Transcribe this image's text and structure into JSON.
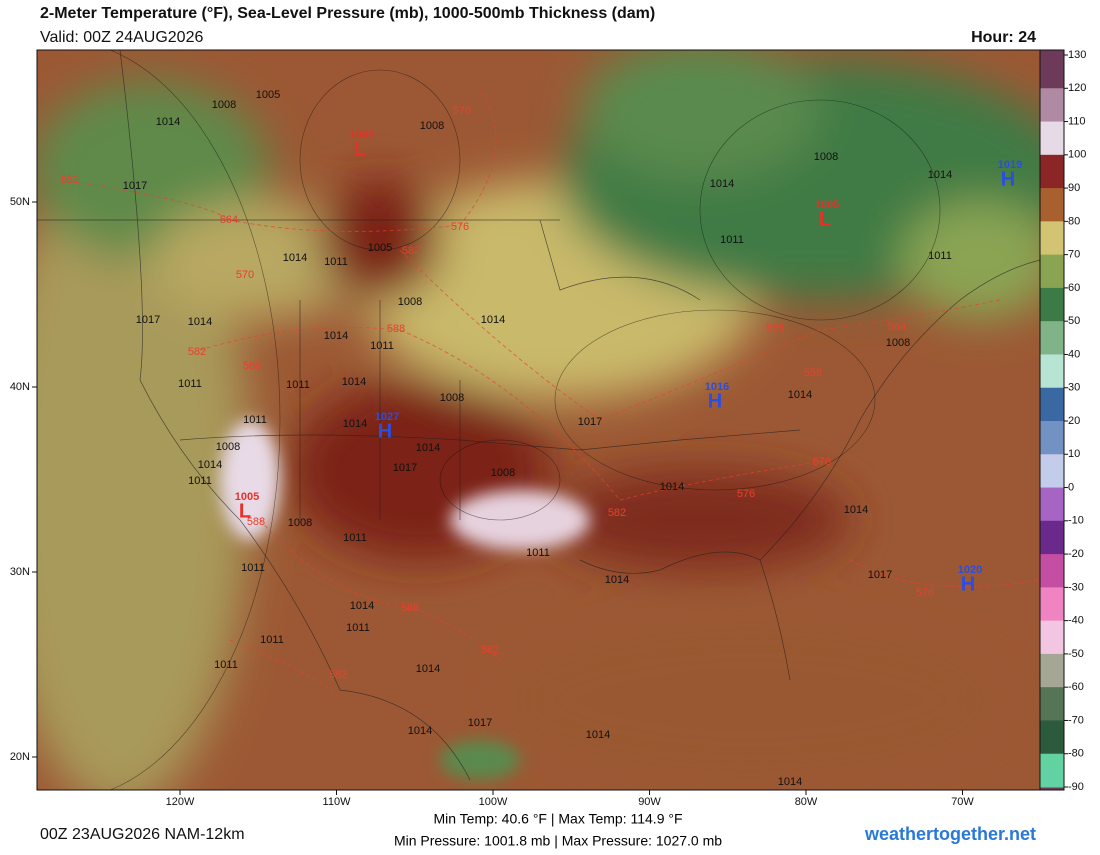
{
  "header": {
    "title": "2-Meter Temperature (°F), Sea-Level Pressure (mb), 1000-500mb Thickness (dam)",
    "valid": "Valid: 00Z 24AUG2026",
    "hour": "Hour: 24"
  },
  "map": {
    "lon_ticks": [
      {
        "value": -120,
        "label": "120W"
      },
      {
        "value": -110,
        "label": "110W"
      },
      {
        "value": -100,
        "label": "100W"
      },
      {
        "value": -90,
        "label": "90W"
      },
      {
        "value": -80,
        "label": "80W"
      },
      {
        "value": -70,
        "label": "70W"
      }
    ],
    "lat_ticks": [
      {
        "value": 50,
        "label": "50N"
      },
      {
        "value": 40,
        "label": "40N"
      },
      {
        "value": 30,
        "label": "30N"
      },
      {
        "value": 20,
        "label": "20N"
      }
    ],
    "centers": [
      {
        "label": "L",
        "value": 1002,
        "color": "#e8302a"
      },
      {
        "label": "L",
        "value": 1005,
        "color": "#e8302a"
      },
      {
        "label": "H",
        "value": 1019,
        "color": "#2a4ee0"
      },
      {
        "label": "H",
        "value": 1016,
        "color": "#2a4ee0"
      },
      {
        "label": "H",
        "value": 1027,
        "color": "#2a4ee0"
      },
      {
        "label": "L",
        "value": 1005,
        "color": "#e8302a"
      },
      {
        "label": "H",
        "value": 1020,
        "color": "#2a4ee0"
      }
    ],
    "pressure_labels": [
      1008,
      1005,
      1014,
      1017,
      1008,
      1014,
      1014,
      1008,
      1014,
      1011,
      1005,
      1008,
      1014,
      1017,
      1014,
      1014,
      1011,
      1011,
      1011,
      1008,
      1011,
      1011,
      1014,
      1008,
      1017,
      1014,
      1011,
      1014,
      1008,
      1014,
      1017,
      1014,
      1008,
      1011,
      1014,
      1014,
      1008,
      1011,
      1011,
      1011,
      1014,
      1017,
      1014,
      1011,
      1011,
      1011,
      1014,
      1017,
      1014,
      1014,
      1014
    ],
    "thickness_labels": [
      552,
      564,
      570,
      576,
      582,
      570,
      588,
      582,
      588,
      558,
      564,
      558,
      570,
      576,
      582,
      588,
      582,
      582,
      576,
      588
    ]
  },
  "colorbar": {
    "ticks": [
      130,
      120,
      110,
      100,
      90,
      80,
      70,
      60,
      50,
      40,
      30,
      20,
      10,
      0,
      -10,
      -20,
      -30,
      -40,
      -50,
      -60,
      -70,
      -80,
      -90
    ],
    "colors": [
      "#6e3a5a",
      "#b08aa2",
      "#e6dae6",
      "#8a2626",
      "#a8602e",
      "#d2c472",
      "#8aa452",
      "#3c7a46",
      "#80b488",
      "#b8e4d4",
      "#3a68a2",
      "#7292c4",
      "#c4cceb",
      "#a664c4",
      "#6a2a8c",
      "#c44ea2",
      "#f084c2",
      "#f2c6e2",
      "#a6a694",
      "#567456",
      "#2c5a3c",
      "#62d2a2"
    ]
  },
  "footer": {
    "run": "00Z 23AUG2026 NAM-12km",
    "temp": "Min Temp: 40.6 °F | Max Temp: 114.9 °F",
    "pressure": "Min Pressure: 1001.8 mb | Max Pressure: 1027.0 mb",
    "site": "weathertogether.net"
  }
}
